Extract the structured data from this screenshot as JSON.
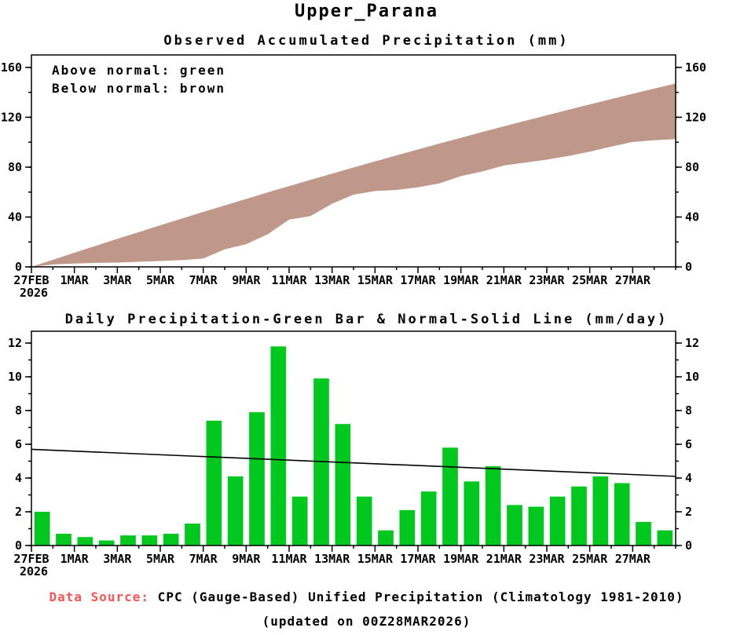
{
  "page_title": "Upper_Parana",
  "colors": {
    "area_brown": "#c0988a",
    "bar_green": "#00c81e",
    "source_red": "#ff5252",
    "axis": "#000000",
    "normal_line": "#000000"
  },
  "footer": {
    "source_label": "Data Source:",
    "source_text": " CPC (Gauge-Based) Unified Precipitation (Climatology 1981-2010)",
    "updated": "(updated on 00Z28MAR2026)"
  },
  "chart_data": [
    {
      "type": "area",
      "title": "Observed Accumulated Precipitation (mm)",
      "legend": [
        "Above normal: green",
        "Below normal: brown"
      ],
      "xlabel": "",
      "ylabel": "",
      "ylim": [
        0,
        170
      ],
      "yticks": [
        0,
        40,
        80,
        120,
        160
      ],
      "ytick_minor_step": 20,
      "x_domain_days": [
        0,
        30
      ],
      "x_tick_positions": [
        0,
        2,
        4,
        6,
        8,
        10,
        12,
        14,
        16,
        18,
        20,
        22,
        24,
        26,
        28
      ],
      "x_tick_labels": [
        "27FEB",
        "1MAR",
        "3MAR",
        "5MAR",
        "7MAR",
        "9MAR",
        "11MAR",
        "13MAR",
        "15MAR",
        "17MAR",
        "19MAR",
        "21MAR",
        "23MAR",
        "25MAR",
        "27MAR"
      ],
      "year_label": "2026",
      "fill_color_meaning": {
        "green": "observed above normal",
        "brown": "observed below normal"
      },
      "series": [
        {
          "name": "Normal accumulated (climatology)",
          "values": [
            0,
            5.7,
            11.3,
            16.9,
            22.5,
            27.9,
            33.4,
            38.7,
            44.1,
            49.3,
            54.5,
            59.7,
            64.8,
            69.8,
            74.8,
            79.7,
            84.6,
            89.4,
            94.2,
            98.9,
            103.5,
            108.2,
            112.7,
            117.2,
            121.6,
            126.0,
            130.3,
            134.6,
            138.8,
            143.0,
            147.1
          ]
        },
        {
          "name": "Observed accumulated",
          "values": [
            0,
            2.0,
            2.7,
            3.2,
            3.5,
            4.1,
            4.7,
            5.4,
            6.7,
            14.1,
            18.2,
            26.1,
            37.9,
            40.8,
            50.7,
            57.9,
            60.8,
            61.7,
            63.8,
            67.0,
            72.8,
            76.6,
            81.3,
            83.7,
            86.0,
            88.9,
            92.4,
            96.5,
            100.2,
            101.6,
            102.5
          ]
        }
      ]
    },
    {
      "type": "bar",
      "title": "Daily Precipitation-Green Bar & Normal-Solid Line (mm/day)",
      "xlabel": "",
      "ylabel": "",
      "ylim": [
        0,
        12.7
      ],
      "yticks": [
        0,
        2,
        4,
        6,
        8,
        10,
        12
      ],
      "ytick_minor_step": 1,
      "x_domain_days": [
        0,
        30
      ],
      "x_tick_positions": [
        0,
        2,
        4,
        6,
        8,
        10,
        12,
        14,
        16,
        18,
        20,
        22,
        24,
        26,
        28
      ],
      "x_tick_labels": [
        "27FEB",
        "1MAR",
        "3MAR",
        "5MAR",
        "7MAR",
        "9MAR",
        "11MAR",
        "13MAR",
        "15MAR",
        "17MAR",
        "19MAR",
        "21MAR",
        "23MAR",
        "25MAR",
        "27MAR"
      ],
      "year_label": "2026",
      "categories": [
        "27FEB",
        "28FEB",
        "1MAR",
        "2MAR",
        "3MAR",
        "4MAR",
        "5MAR",
        "6MAR",
        "7MAR",
        "8MAR",
        "9MAR",
        "10MAR",
        "11MAR",
        "12MAR",
        "13MAR",
        "14MAR",
        "15MAR",
        "16MAR",
        "17MAR",
        "18MAR",
        "19MAR",
        "20MAR",
        "21MAR",
        "22MAR",
        "23MAR",
        "24MAR",
        "25MAR",
        "26MAR",
        "27MAR",
        "28MAR"
      ],
      "values": [
        2.0,
        0.7,
        0.5,
        0.3,
        0.6,
        0.6,
        0.7,
        1.3,
        7.4,
        4.1,
        7.9,
        11.8,
        2.9,
        9.9,
        7.2,
        2.9,
        0.9,
        2.1,
        3.2,
        5.8,
        3.8,
        4.7,
        2.4,
        2.3,
        2.9,
        3.5,
        4.1,
        3.7,
        1.4,
        0.9
      ],
      "normal_line": {
        "name": "Normal (climatology)",
        "start": 5.7,
        "end": 4.1
      }
    }
  ]
}
